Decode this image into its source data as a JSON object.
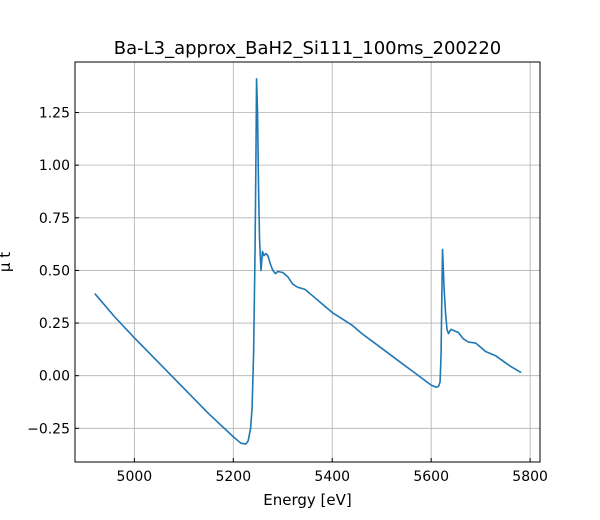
{
  "chart_data": {
    "type": "line",
    "title": "Ba-L3_approx_BaH2_Si111_100ms_200220",
    "xlabel": "Energy [eV]",
    "ylabel": "μ t",
    "xlim": [
      4880,
      5820
    ],
    "ylim": [
      -0.41,
      1.49
    ],
    "xticks": [
      5000,
      5200,
      5400,
      5600,
      5800
    ],
    "yticks": [
      -0.25,
      0.0,
      0.25,
      0.5,
      0.75,
      1.0,
      1.25
    ],
    "xtick_labels": [
      "5000",
      "5200",
      "5400",
      "5600",
      "5800"
    ],
    "ytick_labels": [
      "−0.25",
      "0.00",
      "0.25",
      "0.50",
      "0.75",
      "1.00",
      "1.25"
    ],
    "grid": true,
    "series": [
      {
        "color": "#1f77b4",
        "points": [
          [
            4920,
            0.39
          ],
          [
            4960,
            0.28
          ],
          [
            5000,
            0.18
          ],
          [
            5050,
            0.06
          ],
          [
            5100,
            -0.06
          ],
          [
            5150,
            -0.18
          ],
          [
            5200,
            -0.29
          ],
          [
            5215,
            -0.32
          ],
          [
            5225,
            -0.325
          ],
          [
            5230,
            -0.31
          ],
          [
            5235,
            -0.25
          ],
          [
            5238,
            -0.15
          ],
          [
            5241,
            0.1
          ],
          [
            5244,
            0.6
          ],
          [
            5246,
            1.1
          ],
          [
            5247,
            1.41
          ],
          [
            5249,
            1.25
          ],
          [
            5251,
            0.9
          ],
          [
            5253,
            0.65
          ],
          [
            5256,
            0.5
          ],
          [
            5259,
            0.59
          ],
          [
            5262,
            0.57
          ],
          [
            5266,
            0.58
          ],
          [
            5270,
            0.57
          ],
          [
            5275,
            0.53
          ],
          [
            5280,
            0.5
          ],
          [
            5285,
            0.485
          ],
          [
            5290,
            0.495
          ],
          [
            5300,
            0.49
          ],
          [
            5310,
            0.47
          ],
          [
            5320,
            0.435
          ],
          [
            5330,
            0.42
          ],
          [
            5345,
            0.41
          ],
          [
            5360,
            0.38
          ],
          [
            5380,
            0.34
          ],
          [
            5400,
            0.3
          ],
          [
            5420,
            0.27
          ],
          [
            5440,
            0.24
          ],
          [
            5460,
            0.2
          ],
          [
            5480,
            0.165
          ],
          [
            5500,
            0.13
          ],
          [
            5520,
            0.095
          ],
          [
            5540,
            0.06
          ],
          [
            5560,
            0.025
          ],
          [
            5580,
            -0.01
          ],
          [
            5600,
            -0.045
          ],
          [
            5610,
            -0.055
          ],
          [
            5615,
            -0.05
          ],
          [
            5618,
            -0.03
          ],
          [
            5620,
            0.1
          ],
          [
            5622,
            0.45
          ],
          [
            5623,
            0.6
          ],
          [
            5626,
            0.42
          ],
          [
            5629,
            0.3
          ],
          [
            5632,
            0.22
          ],
          [
            5635,
            0.2
          ],
          [
            5640,
            0.22
          ],
          [
            5650,
            0.21
          ],
          [
            5655,
            0.205
          ],
          [
            5665,
            0.175
          ],
          [
            5675,
            0.16
          ],
          [
            5690,
            0.155
          ],
          [
            5700,
            0.135
          ],
          [
            5710,
            0.115
          ],
          [
            5720,
            0.105
          ],
          [
            5730,
            0.095
          ],
          [
            5745,
            0.07
          ],
          [
            5760,
            0.045
          ],
          [
            5782,
            0.015
          ]
        ]
      }
    ]
  }
}
